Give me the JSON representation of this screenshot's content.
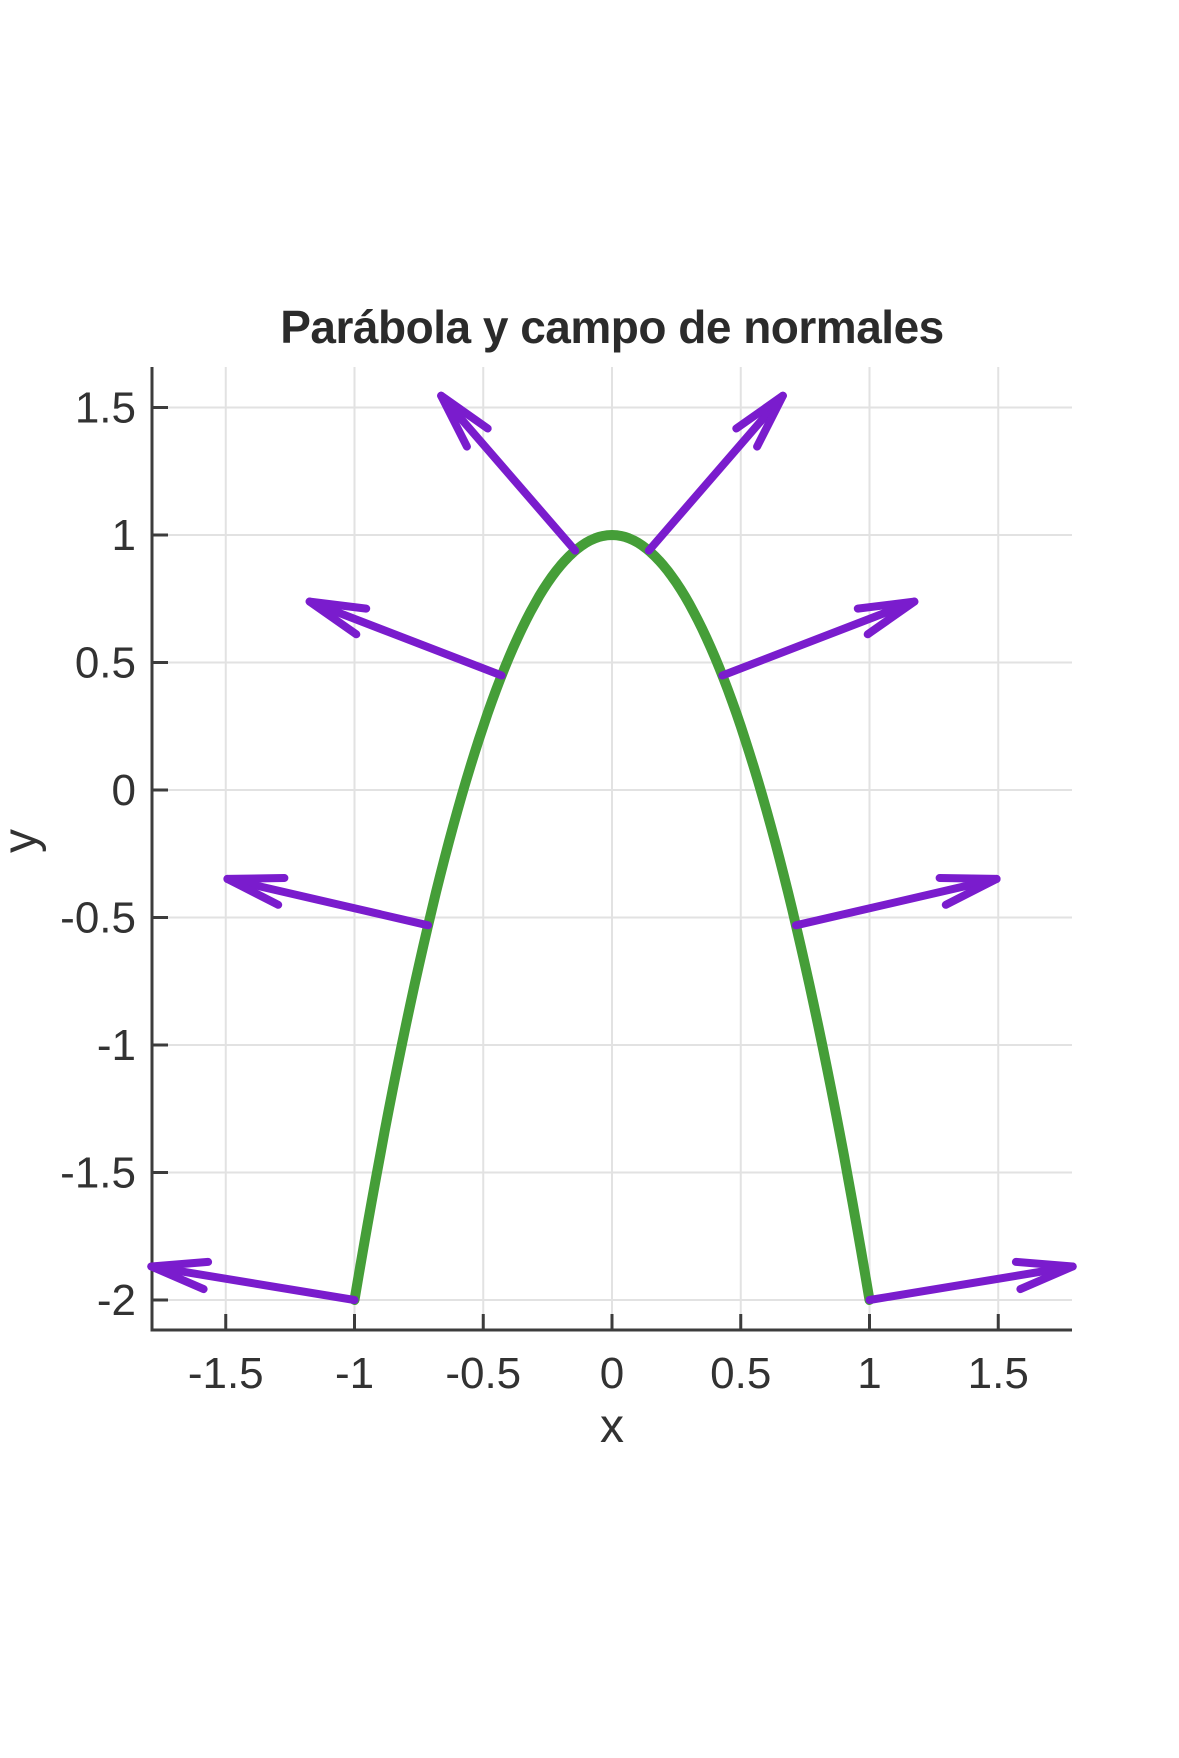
{
  "title": {
    "text": "Parábola y campo de normales"
  },
  "axes": {
    "xlabel": "x",
    "ylabel": "y"
  },
  "colors": {
    "curve_green": "#459e38",
    "arrow_purple": "#7a1ccd",
    "grid_gray": "#e2e2e2",
    "axis_dark": "#3c3c3c",
    "text_dark": "#323232",
    "background": "#ffffff"
  },
  "chart_data": {
    "type": "line",
    "title": "Parábola y campo de normales",
    "xlabel": "x",
    "ylabel": "y",
    "xlim": [
      -1.79,
      1.79
    ],
    "ylim": [
      -2.12,
      1.66
    ],
    "xticks": [
      -1.5,
      -1,
      -0.5,
      0,
      0.5,
      1,
      1.5
    ],
    "yticks": [
      1.5,
      1,
      0.5,
      0,
      -0.5,
      -1,
      -1.5,
      -2
    ],
    "grid": true,
    "legend": "none",
    "series": [
      {
        "name": "parabola",
        "type": "function-line",
        "color": "#459e38",
        "stroke_width": 10,
        "function": "y = 1 - 3*x^2",
        "coeffs": {
          "a": -3,
          "b": 0,
          "c": 1
        },
        "x_range": [
          -1,
          1
        ],
        "endpoints": [
          [
            -1,
            -2
          ],
          [
            0,
            1
          ],
          [
            1,
            -2
          ]
        ]
      },
      {
        "name": "campo de normales",
        "type": "quiver",
        "color": "#7a1ccd",
        "stroke_width": 8,
        "arrow_scale": 0.8,
        "arrows": [
          {
            "x": -1.0,
            "y": -2.0,
            "dx": -0.7891,
            "dy": 0.1315
          },
          {
            "x": -0.7143,
            "y": -0.5306,
            "dx": -0.7791,
            "dy": 0.1818
          },
          {
            "x": -0.4286,
            "y": 0.449,
            "dx": -0.7456,
            "dy": 0.29
          },
          {
            "x": -0.1429,
            "y": 0.9388,
            "dx": -0.5207,
            "dy": 0.6074
          },
          {
            "x": 0.1429,
            "y": 0.9388,
            "dx": 0.5207,
            "dy": 0.6074
          },
          {
            "x": 0.4286,
            "y": 0.449,
            "dx": 0.7456,
            "dy": 0.29
          },
          {
            "x": 0.7143,
            "y": -0.5306,
            "dx": 0.7791,
            "dy": 0.1818
          },
          {
            "x": 1.0,
            "y": -2.0,
            "dx": 0.7891,
            "dy": 0.1315
          }
        ]
      }
    ]
  }
}
